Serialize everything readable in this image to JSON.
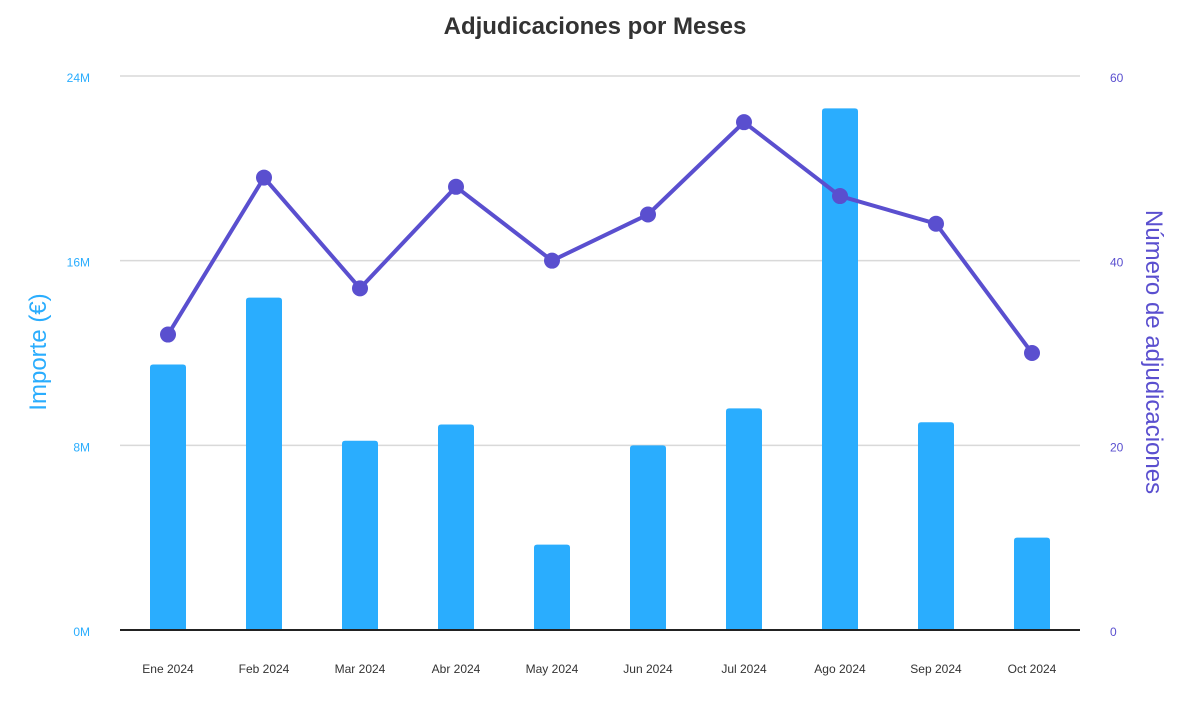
{
  "colors": {
    "bar": "#2aadfe",
    "line": "#5a4fcf",
    "grid": "#d9d9d9",
    "baseline": "#222222"
  },
  "chart_data": {
    "type": "bar",
    "title": "Adjudicaciones por Meses",
    "categories": [
      "Ene 2024",
      "Feb 2024",
      "Mar 2024",
      "Abr 2024",
      "May 2024",
      "Jun 2024",
      "Jul 2024",
      "Ago 2024",
      "Sep 2024",
      "Oct 2024"
    ],
    "series": [
      {
        "type": "bar",
        "axis": "left",
        "values": [
          11.5,
          14.4,
          8.2,
          8.9,
          3.7,
          8.0,
          9.6,
          22.6,
          9.0,
          4.0
        ]
      },
      {
        "type": "line",
        "axis": "right",
        "values": [
          32,
          49,
          37,
          48,
          40,
          45,
          55,
          47,
          44,
          30
        ]
      }
    ],
    "y_left": {
      "label": "Importe (€)",
      "range": [
        0,
        24
      ],
      "ticks": [
        0,
        8,
        16,
        24
      ],
      "tick_labels": [
        "0M",
        "8M",
        "16M",
        "24M"
      ]
    },
    "y_right": {
      "label": "Número de adjudicaciones",
      "range": [
        0,
        60
      ],
      "ticks": [
        0,
        20,
        40,
        60
      ],
      "tick_labels": [
        "0",
        "20",
        "40",
        "60"
      ]
    },
    "grid": true,
    "legend": "none"
  }
}
